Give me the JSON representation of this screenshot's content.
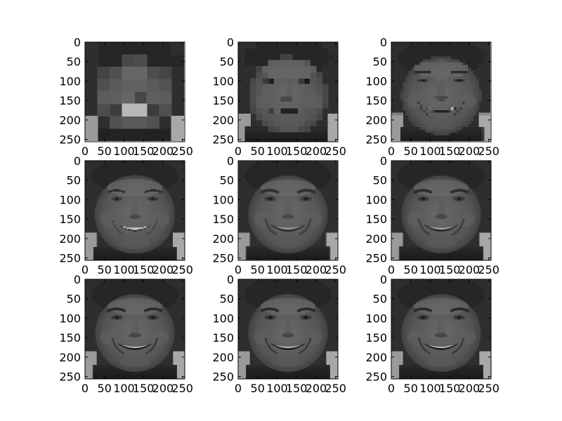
{
  "chart_data": {
    "type": "heatmap",
    "layout": {
      "rows": 3,
      "cols": 3
    },
    "image_size": 256,
    "colormap": "gray",
    "xticks": [
      0,
      50,
      100,
      150,
      200,
      250
    ],
    "yticks": [
      0,
      50,
      100,
      150,
      200,
      250
    ],
    "xlim": [
      0,
      256
    ],
    "ylim": [
      256,
      0
    ],
    "panels": [
      {
        "row": 1,
        "col": 1,
        "block_size": 32
      },
      {
        "row": 1,
        "col": 2,
        "block_size": 16
      },
      {
        "row": 1,
        "col": 3,
        "block_size": 8
      },
      {
        "row": 2,
        "col": 1,
        "block_size": 4
      },
      {
        "row": 2,
        "col": 2,
        "block_size": 3
      },
      {
        "row": 2,
        "col": 3,
        "block_size": 2
      },
      {
        "row": 3,
        "col": 1,
        "block_size": 1
      },
      {
        "row": 3,
        "col": 2,
        "block_size": 1
      },
      {
        "row": 3,
        "col": 3,
        "block_size": 1
      }
    ]
  }
}
